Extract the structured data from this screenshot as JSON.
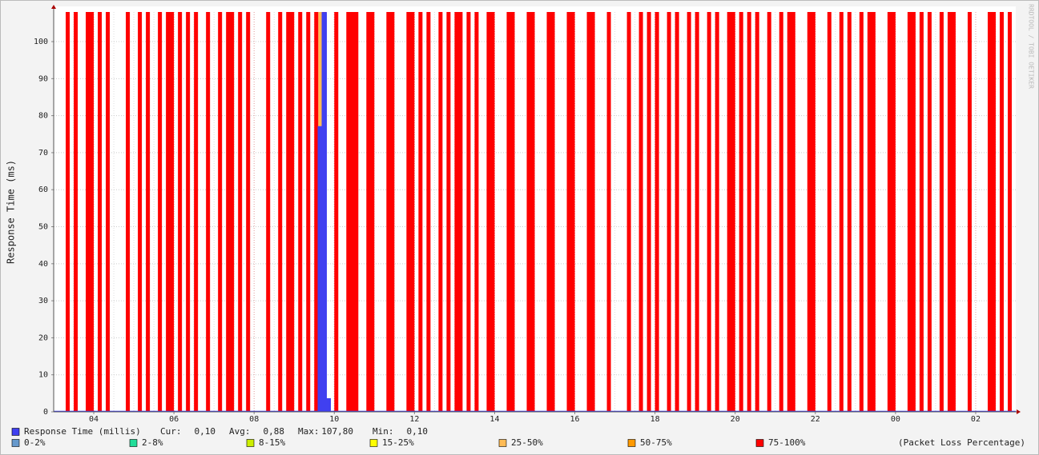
{
  "chart_data": {
    "type": "rrd",
    "ylabel": "Response Time (ms)",
    "watermark": "RRDTOOL / TOBI OETIKER",
    "xlim": [
      0,
      24
    ],
    "ylim": [
      0,
      108
    ],
    "yticks": [
      0,
      10,
      20,
      30,
      40,
      50,
      60,
      70,
      80,
      90,
      100
    ],
    "xticks": [
      {
        "value": 1,
        "label": "04"
      },
      {
        "value": 3,
        "label": "06"
      },
      {
        "value": 5,
        "label": "08"
      },
      {
        "value": 7,
        "label": "10"
      },
      {
        "value": 9,
        "label": "12"
      },
      {
        "value": 11,
        "label": "14"
      },
      {
        "value": 13,
        "label": "16"
      },
      {
        "value": 15,
        "label": "18"
      },
      {
        "value": 17,
        "label": "20"
      },
      {
        "value": 19,
        "label": "22"
      },
      {
        "value": 21,
        "label": "00"
      },
      {
        "value": 23,
        "label": "02"
      }
    ],
    "grid": true,
    "response": {
      "name": "Response Time (millis)",
      "color": "#4040f0",
      "x": [
        0,
        6.6,
        6.6,
        6.7,
        6.7,
        6.8,
        6.8,
        6.9,
        6.9,
        24
      ],
      "values": [
        0.1,
        0.1,
        77,
        77,
        107.8,
        107.8,
        3.5,
        3.5,
        0.1,
        0.1
      ],
      "stats": [
        {
          "label": "Cur:",
          "value": "0,10"
        },
        {
          "label": "Avg:",
          "value": "0,88"
        },
        {
          "label": "Max:",
          "value": "107,80"
        },
        {
          "label": "Min:",
          "value": "0,10"
        }
      ]
    },
    "loss_title": "(Packet Loss Percentage)",
    "series": [
      {
        "name": "0-2%",
        "color": "#6699cc"
      },
      {
        "name": "2-8%",
        "color": "#22dd99"
      },
      {
        "name": "8-15%",
        "color": "#ccee00"
      },
      {
        "name": "15-25%",
        "color": "#ffff00"
      },
      {
        "name": "25-50%",
        "color": "#ffbb55",
        "bands": [
          [
            6.6,
            6.7
          ]
        ]
      },
      {
        "name": "50-75%",
        "color": "#ff9900"
      },
      {
        "name": "75-100%",
        "color": "#ff0000",
        "bands": [
          [
            0.3,
            0.4
          ],
          [
            0.5,
            0.6
          ],
          [
            0.8,
            1.0
          ],
          [
            1.1,
            1.2
          ],
          [
            1.3,
            1.4
          ],
          [
            1.8,
            1.9
          ],
          [
            2.1,
            2.2
          ],
          [
            2.3,
            2.4
          ],
          [
            2.6,
            2.7
          ],
          [
            2.8,
            3.0
          ],
          [
            3.1,
            3.2
          ],
          [
            3.3,
            3.4
          ],
          [
            3.5,
            3.6
          ],
          [
            3.8,
            3.9
          ],
          [
            4.1,
            4.2
          ],
          [
            4.3,
            4.5
          ],
          [
            4.6,
            4.7
          ],
          [
            4.8,
            4.9
          ],
          [
            5.3,
            5.4
          ],
          [
            5.6,
            5.7
          ],
          [
            5.8,
            6.0
          ],
          [
            6.1,
            6.2
          ],
          [
            6.3,
            6.4
          ],
          [
            6.5,
            6.6
          ],
          [
            6.7,
            6.8
          ],
          [
            7.0,
            7.1
          ],
          [
            7.3,
            7.6
          ],
          [
            7.8,
            8.0
          ],
          [
            8.3,
            8.5
          ],
          [
            8.8,
            9.0
          ],
          [
            9.1,
            9.2
          ],
          [
            9.3,
            9.4
          ],
          [
            9.6,
            9.7
          ],
          [
            9.8,
            9.9
          ],
          [
            10.0,
            10.2
          ],
          [
            10.3,
            10.4
          ],
          [
            10.5,
            10.6
          ],
          [
            10.8,
            11.0
          ],
          [
            11.3,
            11.5
          ],
          [
            11.8,
            12.0
          ],
          [
            12.3,
            12.5
          ],
          [
            12.8,
            13.0
          ],
          [
            13.3,
            13.5
          ],
          [
            13.8,
            13.9
          ],
          [
            14.3,
            14.4
          ],
          [
            14.6,
            14.7
          ],
          [
            14.8,
            14.9
          ],
          [
            15.0,
            15.1
          ],
          [
            15.3,
            15.4
          ],
          [
            15.5,
            15.6
          ],
          [
            15.8,
            15.9
          ],
          [
            16.0,
            16.1
          ],
          [
            16.3,
            16.4
          ],
          [
            16.5,
            16.6
          ],
          [
            16.8,
            17.0
          ],
          [
            17.1,
            17.2
          ],
          [
            17.3,
            17.4
          ],
          [
            17.5,
            17.6
          ],
          [
            17.8,
            17.9
          ],
          [
            18.1,
            18.2
          ],
          [
            18.3,
            18.5
          ],
          [
            18.8,
            19.0
          ],
          [
            19.3,
            19.4
          ],
          [
            19.6,
            19.7
          ],
          [
            19.8,
            19.9
          ],
          [
            20.1,
            20.2
          ],
          [
            20.3,
            20.5
          ],
          [
            20.8,
            21.0
          ],
          [
            21.3,
            21.5
          ],
          [
            21.6,
            21.7
          ],
          [
            21.8,
            21.9
          ],
          [
            22.1,
            22.2
          ],
          [
            22.3,
            22.5
          ],
          [
            22.8,
            22.9
          ],
          [
            23.3,
            23.5
          ],
          [
            23.6,
            23.7
          ],
          [
            23.8,
            23.9
          ]
        ]
      }
    ]
  }
}
